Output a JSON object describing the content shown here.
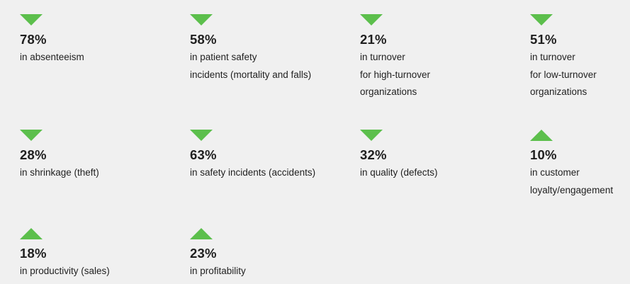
{
  "accent_color": "#5cbf4c",
  "metrics": [
    {
      "direction": "down",
      "arrow_icon": "triangle-down-icon",
      "value": "78%",
      "label": "in absenteeism"
    },
    {
      "direction": "down",
      "arrow_icon": "triangle-down-icon",
      "value": "58%",
      "label": "in patient safety\nincidents (mortality and falls)"
    },
    {
      "direction": "down",
      "arrow_icon": "triangle-down-icon",
      "value": "21%",
      "label": "in turnover\nfor high-turnover\norganizations"
    },
    {
      "direction": "down",
      "arrow_icon": "triangle-down-icon",
      "value": "51%",
      "label": "in turnover\nfor low-turnover\norganizations"
    },
    {
      "direction": "down",
      "arrow_icon": "triangle-down-icon",
      "value": "28%",
      "label": "in shrinkage (theft)"
    },
    {
      "direction": "down",
      "arrow_icon": "triangle-down-icon",
      "value": "63%",
      "label": "in safety incidents (accidents)"
    },
    {
      "direction": "down",
      "arrow_icon": "triangle-down-icon",
      "value": "32%",
      "label": "in quality (defects)"
    },
    {
      "direction": "up",
      "arrow_icon": "triangle-up-icon",
      "value": "10%",
      "label": "in customer\nloyalty/engagement"
    },
    {
      "direction": "up",
      "arrow_icon": "triangle-up-icon",
      "value": "18%",
      "label": "in productivity (sales)"
    },
    {
      "direction": "up",
      "arrow_icon": "triangle-up-icon",
      "value": "23%",
      "label": "in profitability"
    }
  ]
}
